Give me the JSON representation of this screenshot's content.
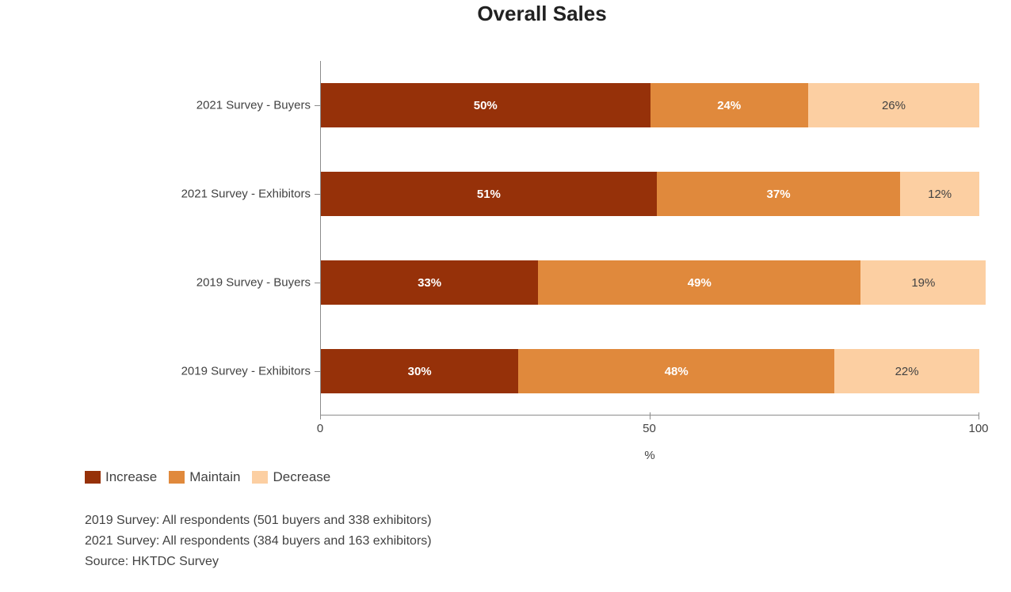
{
  "chart_data": {
    "type": "bar",
    "orientation": "horizontal",
    "stacked": true,
    "title": "Overall Sales",
    "categories": [
      "2021 Survey - Buyers",
      "2021 Survey - Exhibitors",
      "2019 Survey - Buyers",
      "2019 Survey - Exhibitors"
    ],
    "series": [
      {
        "name": "Increase",
        "color": "#963109",
        "label_color": "#ffffff",
        "label_weight": 700,
        "values": [
          50,
          51,
          33,
          30
        ]
      },
      {
        "name": "Maintain",
        "color": "#e0893c",
        "label_color": "#ffffff",
        "label_weight": 700,
        "values": [
          24,
          37,
          49,
          48
        ]
      },
      {
        "name": "Decrease",
        "color": "#fccfa2",
        "label_color": "#424242",
        "label_weight": 400,
        "values": [
          26,
          12,
          19,
          22
        ]
      }
    ],
    "value_suffix": "%",
    "xlabel": "%",
    "xlim": [
      0,
      100
    ],
    "x_ticks": [
      0,
      50,
      100
    ],
    "grid": false,
    "legend_position": "bottom-left",
    "axis_color": "#8c8c8c",
    "text_color": "#424242",
    "title_color": "#212121"
  },
  "footnotes": [
    "2019 Survey: All respondents (501 buyers and 338 exhibitors)",
    "2021 Survey: All respondents (384 buyers and 163 exhibitors)",
    "Source: HKTDC Survey"
  ]
}
